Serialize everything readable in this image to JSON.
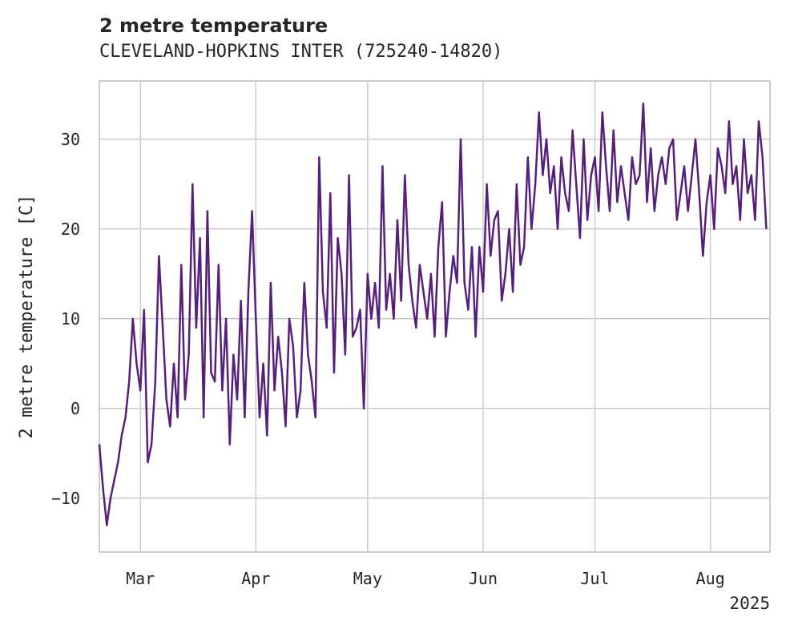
{
  "chart_data": {
    "type": "line",
    "title": "2 metre temperature",
    "subtitle": "CLEVELAND-HOPKINS INTER (725240-14820)",
    "ylabel": "2 metre temperature [C]",
    "xlabel": "",
    "x_tick_labels": [
      "Mar",
      "Apr",
      "May",
      "Jun",
      "Jul",
      "Aug"
    ],
    "x_tick_dates": [
      "2025-03-01",
      "2025-04-01",
      "2025-05-01",
      "2025-06-01",
      "2025-07-01",
      "2025-08-01"
    ],
    "x_offset_label": "2025",
    "xlim": [
      "2025-02-18",
      "2025-08-17"
    ],
    "ylim": [
      -16,
      36.5
    ],
    "y_ticks": [
      -10,
      0,
      10,
      20,
      30
    ],
    "y_tick_labels": [
      "−10",
      "0",
      "10",
      "20",
      "30"
    ],
    "grid": true,
    "line_color": "#56207a",
    "series": [
      {
        "x": [
          "2025-02-18",
          "2025-02-19",
          "2025-02-20",
          "2025-02-21",
          "2025-02-22",
          "2025-02-23",
          "2025-02-24",
          "2025-02-25",
          "2025-02-26",
          "2025-02-27",
          "2025-02-28",
          "2025-03-01",
          "2025-03-02",
          "2025-03-03",
          "2025-03-04",
          "2025-03-05",
          "2025-03-06",
          "2025-03-07",
          "2025-03-08",
          "2025-03-09",
          "2025-03-10",
          "2025-03-11",
          "2025-03-12",
          "2025-03-13",
          "2025-03-14",
          "2025-03-15",
          "2025-03-16",
          "2025-03-17",
          "2025-03-18",
          "2025-03-19",
          "2025-03-20",
          "2025-03-21",
          "2025-03-22",
          "2025-03-23",
          "2025-03-24",
          "2025-03-25",
          "2025-03-26",
          "2025-03-27",
          "2025-03-28",
          "2025-03-29",
          "2025-03-30",
          "2025-03-31",
          "2025-04-01",
          "2025-04-02",
          "2025-04-03",
          "2025-04-04",
          "2025-04-05",
          "2025-04-06",
          "2025-04-07",
          "2025-04-08",
          "2025-04-09",
          "2025-04-10",
          "2025-04-11",
          "2025-04-12",
          "2025-04-13",
          "2025-04-14",
          "2025-04-15",
          "2025-04-16",
          "2025-04-17",
          "2025-04-18",
          "2025-04-19",
          "2025-04-20",
          "2025-04-21",
          "2025-04-22",
          "2025-04-23",
          "2025-04-24",
          "2025-04-25",
          "2025-04-26",
          "2025-04-27",
          "2025-04-28",
          "2025-04-29",
          "2025-04-30",
          "2025-05-01",
          "2025-05-02",
          "2025-05-03",
          "2025-05-04",
          "2025-05-05",
          "2025-05-06",
          "2025-05-07",
          "2025-05-08",
          "2025-05-09",
          "2025-05-10",
          "2025-05-11",
          "2025-05-12",
          "2025-05-13",
          "2025-05-14",
          "2025-05-15",
          "2025-05-16",
          "2025-05-17",
          "2025-05-18",
          "2025-05-19",
          "2025-05-20",
          "2025-05-21",
          "2025-05-22",
          "2025-05-23",
          "2025-05-24",
          "2025-05-25",
          "2025-05-26",
          "2025-05-27",
          "2025-05-28",
          "2025-05-29",
          "2025-05-30",
          "2025-05-31",
          "2025-06-01",
          "2025-06-02",
          "2025-06-03",
          "2025-06-04",
          "2025-06-05",
          "2025-06-06",
          "2025-06-07",
          "2025-06-08",
          "2025-06-09",
          "2025-06-10",
          "2025-06-11",
          "2025-06-12",
          "2025-06-13",
          "2025-06-14",
          "2025-06-15",
          "2025-06-16",
          "2025-06-17",
          "2025-06-18",
          "2025-06-19",
          "2025-06-20",
          "2025-06-21",
          "2025-06-22",
          "2025-06-23",
          "2025-06-24",
          "2025-06-25",
          "2025-06-26",
          "2025-06-27",
          "2025-06-28",
          "2025-06-29",
          "2025-06-30",
          "2025-07-01",
          "2025-07-02",
          "2025-07-03",
          "2025-07-04",
          "2025-07-05",
          "2025-07-06",
          "2025-07-07",
          "2025-07-08",
          "2025-07-09",
          "2025-07-10",
          "2025-07-11",
          "2025-07-12",
          "2025-07-13",
          "2025-07-14",
          "2025-07-15",
          "2025-07-16",
          "2025-07-17",
          "2025-07-18",
          "2025-07-19",
          "2025-07-20",
          "2025-07-21",
          "2025-07-22",
          "2025-07-23",
          "2025-07-24",
          "2025-07-25",
          "2025-07-26",
          "2025-07-27",
          "2025-07-28",
          "2025-07-29",
          "2025-07-30",
          "2025-07-31",
          "2025-08-01",
          "2025-08-02",
          "2025-08-03",
          "2025-08-04",
          "2025-08-05",
          "2025-08-06",
          "2025-08-07",
          "2025-08-08",
          "2025-08-09",
          "2025-08-10",
          "2025-08-11",
          "2025-08-12",
          "2025-08-13",
          "2025-08-14",
          "2025-08-15",
          "2025-08-16"
        ],
        "values": [
          -4,
          -9,
          -13,
          -10,
          -8,
          -6,
          -3,
          -1,
          3,
          10,
          5,
          2,
          11,
          -6,
          -4,
          3,
          17,
          9,
          1,
          -2,
          5,
          -1,
          16,
          1,
          6,
          25,
          9,
          19,
          -1,
          22,
          4,
          3,
          16,
          2,
          10,
          -4,
          6,
          1,
          12,
          -1,
          13,
          22,
          10,
          -1,
          5,
          -3,
          14,
          2,
          8,
          4,
          -2,
          10,
          7,
          -1,
          2,
          14,
          6,
          3,
          -1,
          28,
          13,
          9,
          24,
          4,
          19,
          15,
          6,
          26,
          8,
          9,
          11,
          0,
          15,
          10,
          14,
          9,
          27,
          11,
          15,
          10,
          21,
          12,
          26,
          16,
          12,
          9,
          16,
          13,
          10,
          15,
          8,
          18,
          23,
          8,
          13,
          17,
          14,
          30,
          14,
          11,
          18,
          8,
          18,
          13,
          25,
          17,
          21,
          22,
          12,
          15,
          20,
          13,
          25,
          16,
          18,
          28,
          20,
          25,
          33,
          26,
          30,
          24,
          27,
          20,
          28,
          24,
          22,
          31,
          25,
          19,
          30,
          21,
          26,
          28,
          22,
          33,
          27,
          22,
          31,
          23,
          27,
          24,
          21,
          28,
          25,
          26,
          34,
          23,
          29,
          22,
          26,
          28,
          25,
          29,
          30,
          21,
          24,
          27,
          22,
          26,
          30,
          24,
          17,
          23,
          26,
          20,
          29,
          27,
          24,
          32,
          25,
          27,
          21,
          30,
          24,
          26,
          21,
          32,
          28,
          20
        ]
      }
    ]
  }
}
